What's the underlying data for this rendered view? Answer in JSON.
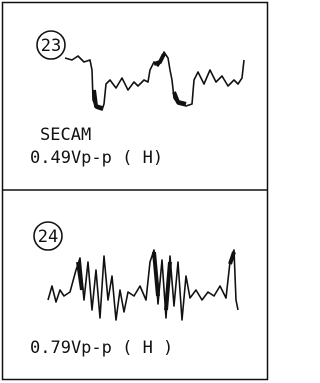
{
  "panels": [
    {
      "number": "23",
      "labels": [
        "SECAM",
        "0.49Vp-p ( H)"
      ]
    },
    {
      "number": "24",
      "labels": [
        "0.79Vp-p ( H )"
      ]
    }
  ]
}
